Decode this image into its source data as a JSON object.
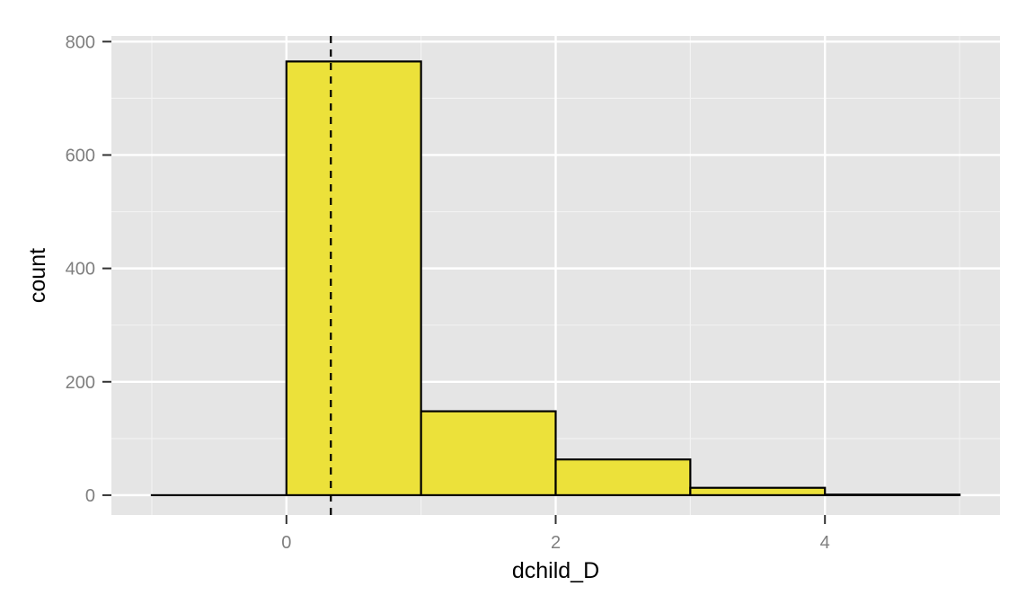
{
  "chart_data": {
    "type": "bar",
    "xlabel": "dchild_D",
    "ylabel": "count",
    "xlim": [
      -1.3,
      5.3
    ],
    "ylim": [
      -35,
      810
    ],
    "x_ticks": [
      0,
      2,
      4
    ],
    "y_ticks": [
      0,
      200,
      400,
      600,
      800
    ],
    "bins": [
      {
        "x0": -1,
        "x1": 0,
        "count": 0
      },
      {
        "x0": 0,
        "x1": 1,
        "count": 765
      },
      {
        "x0": 1,
        "x1": 2,
        "count": 148
      },
      {
        "x0": 2,
        "x1": 3,
        "count": 63
      },
      {
        "x0": 3,
        "x1": 4,
        "count": 13
      },
      {
        "x0": 4,
        "x1": 5,
        "count": 1
      }
    ],
    "mean_line_x": 0.33,
    "fill_color": "#ece13a",
    "outline_color": "#000000",
    "panel_color": "#e5e5e5",
    "grid": true
  }
}
